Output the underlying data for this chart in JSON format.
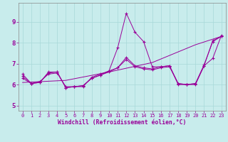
{
  "background_color": "#c8ecec",
  "line_color": "#990099",
  "grid_color": "#a8d8d8",
  "xlim": [
    -0.5,
    23.5
  ],
  "ylim": [
    4.75,
    9.9
  ],
  "yticks": [
    5,
    6,
    7,
    8,
    9
  ],
  "xticks": [
    0,
    1,
    2,
    3,
    4,
    5,
    6,
    7,
    8,
    9,
    10,
    11,
    12,
    13,
    14,
    15,
    16,
    17,
    18,
    19,
    20,
    21,
    22,
    23
  ],
  "xlabel": "Windchill (Refroidissement éolien,°C)",
  "lines": [
    {
      "x": [
        0,
        1,
        2,
        3,
        4,
        5,
        6,
        7,
        8,
        9,
        10,
        11,
        12,
        13,
        14,
        15,
        16,
        17,
        18,
        19,
        20,
        21,
        22,
        23
      ],
      "y": [
        6.5,
        6.05,
        6.1,
        6.6,
        6.6,
        5.85,
        5.9,
        5.9,
        6.35,
        6.5,
        6.65,
        7.75,
        9.4,
        8.5,
        8.05,
        6.85,
        6.85,
        6.9,
        6.0,
        6.0,
        6.0,
        6.9,
        7.25,
        8.35
      ],
      "marker": true
    },
    {
      "x": [
        0,
        1,
        2,
        3,
        4,
        5,
        6,
        7,
        8,
        9,
        10,
        11,
        12,
        13,
        14,
        15,
        16,
        17,
        18,
        19,
        20,
        21,
        22,
        23
      ],
      "y": [
        6.3,
        6.05,
        6.15,
        6.5,
        6.55,
        5.9,
        5.9,
        5.95,
        6.3,
        6.45,
        6.6,
        6.8,
        7.2,
        6.85,
        6.75,
        6.7,
        6.8,
        6.85,
        6.05,
        6.0,
        6.05,
        6.9,
        8.1,
        8.3
      ],
      "marker": true
    },
    {
      "x": [
        0,
        1,
        2,
        3,
        4,
        5,
        6,
        7,
        8,
        9,
        10,
        11,
        12,
        13,
        14,
        15,
        16,
        17,
        18,
        19,
        20,
        21,
        22,
        23
      ],
      "y": [
        6.4,
        6.05,
        6.1,
        6.55,
        6.6,
        5.85,
        5.9,
        5.95,
        6.3,
        6.45,
        6.65,
        6.8,
        7.3,
        6.9,
        6.8,
        6.75,
        6.85,
        6.9,
        6.05,
        6.0,
        6.05,
        6.95,
        8.05,
        8.3
      ],
      "marker": true
    },
    {
      "x": [
        0,
        5,
        10,
        15,
        20,
        23
      ],
      "y": [
        6.1,
        6.2,
        6.6,
        7.05,
        7.9,
        8.3
      ],
      "marker": false
    }
  ]
}
